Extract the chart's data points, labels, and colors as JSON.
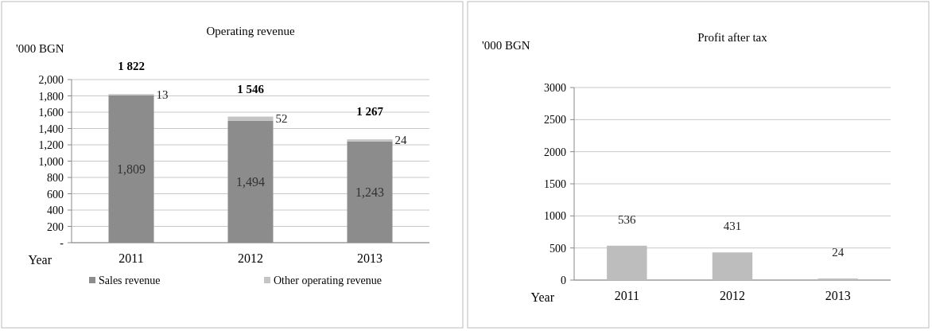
{
  "chart_data": [
    {
      "type": "bar",
      "title": "Operating revenue",
      "ylabel": "'000 BGN",
      "xlabel": "Year",
      "categories": [
        "2011",
        "2012",
        "2013"
      ],
      "stacked": true,
      "series": [
        {
          "name": "Sales revenue",
          "color": "#8c8c8c",
          "values": [
            1809,
            1494,
            1243
          ],
          "value_labels": [
            "1,809",
            "1,494",
            "1,243"
          ]
        },
        {
          "name": "Other operating revenue",
          "color": "#c4c4c4",
          "values": [
            13,
            52,
            24
          ],
          "value_labels": [
            "13",
            "52",
            "24"
          ]
        }
      ],
      "totals": [
        "1 822",
        "1 546",
        "1 267"
      ],
      "ylim": [
        0,
        2000
      ],
      "yticks": [
        {
          "value": 0,
          "label": "-"
        },
        200,
        400,
        600,
        800,
        {
          "value": 1000,
          "label": "1,000"
        },
        {
          "value": 1200,
          "label": "1,200"
        },
        {
          "value": 1400,
          "label": "1,400"
        },
        {
          "value": 1600,
          "label": "1,600"
        },
        {
          "value": 1800,
          "label": "1,800"
        },
        {
          "value": 2000,
          "label": "2,000"
        }
      ],
      "grid": "y",
      "legend": "bottom"
    },
    {
      "type": "bar",
      "title": "Profit after tax",
      "ylabel": "'000 BGN",
      "xlabel": "Year",
      "categories": [
        "2011",
        "2012",
        "2013"
      ],
      "values": [
        536,
        431,
        24
      ],
      "color": "#bdbdbd",
      "data_labels": true,
      "ylim": [
        0,
        3000
      ],
      "yticks": [
        0,
        500,
        1000,
        1500,
        2000,
        2500,
        3000
      ],
      "grid": "y"
    }
  ]
}
